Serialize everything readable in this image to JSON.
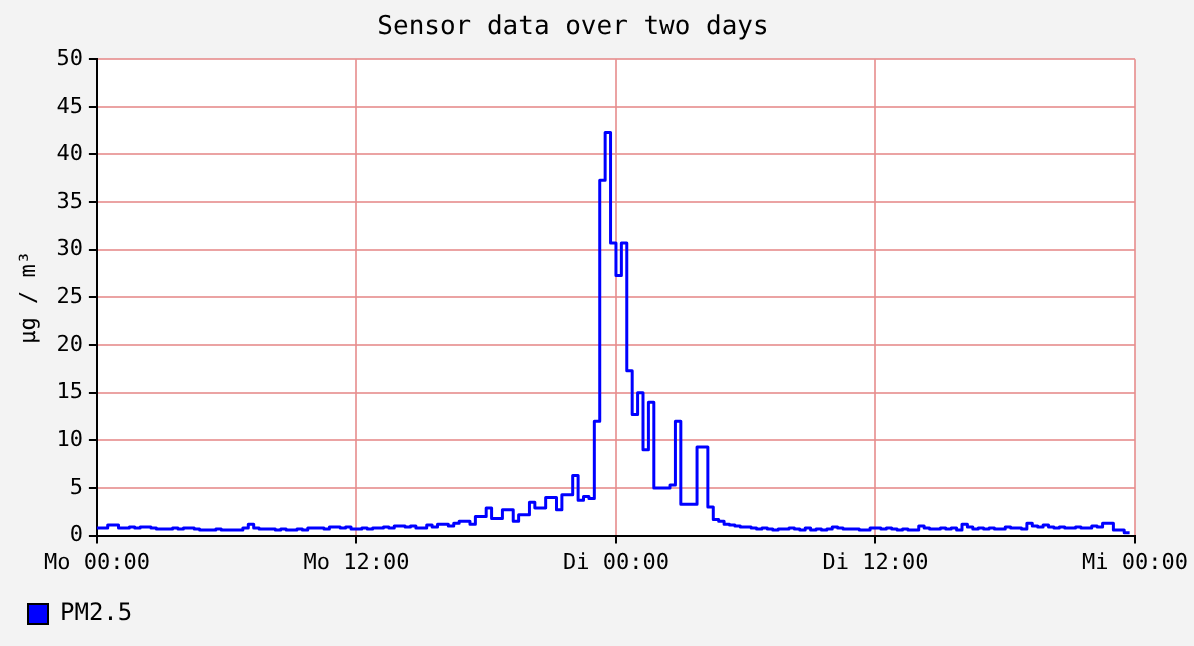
{
  "chart_data": {
    "type": "step",
    "title": "Sensor data over two days",
    "ylabel": "µg / m³",
    "categories": [
      "Mo 00:00",
      null,
      null,
      null,
      null,
      null,
      null,
      null,
      null,
      null,
      null,
      null,
      null,
      null,
      null,
      null,
      null,
      null,
      null,
      null,
      null,
      null,
      null,
      null,
      null,
      null,
      null,
      null,
      null,
      null,
      null,
      null,
      null,
      null,
      null,
      null,
      null,
      null,
      null,
      null,
      null,
      null,
      null,
      null,
      null,
      null,
      null,
      null,
      "Mo 12:00",
      null,
      null,
      null,
      null,
      null,
      null,
      null,
      null,
      null,
      null,
      null,
      null,
      null,
      null,
      null,
      null,
      null,
      null,
      null,
      null,
      null,
      null,
      null,
      null,
      null,
      null,
      null,
      null,
      null,
      null,
      null,
      null,
      null,
      null,
      null,
      null,
      null,
      null,
      null,
      null,
      null,
      null,
      null,
      null,
      null,
      null,
      null,
      "Di 00:00",
      null,
      null,
      null,
      null,
      null,
      null,
      null,
      null,
      null,
      null,
      null,
      null,
      null,
      null,
      null,
      null,
      null,
      null,
      null,
      null,
      null,
      null,
      null,
      null,
      null,
      null,
      null,
      null,
      null,
      null,
      null,
      null,
      null,
      null,
      null,
      null,
      null,
      null,
      null,
      null,
      null,
      null,
      null,
      null,
      null,
      null,
      null,
      "Di 12:00",
      null,
      null,
      null,
      null,
      null,
      null,
      null,
      null,
      null,
      null,
      null,
      null,
      null,
      null,
      null,
      null,
      null,
      null,
      null,
      null,
      null,
      null,
      null,
      null,
      null,
      null,
      null,
      null,
      null,
      null,
      null,
      null,
      null,
      null,
      null,
      null,
      null,
      null,
      null,
      null,
      null,
      null,
      null,
      null,
      null,
      null,
      null,
      "Mi 00:00"
    ],
    "ylim": [
      0,
      50
    ],
    "yticks": [
      0,
      5,
      10,
      15,
      20,
      25,
      30,
      35,
      40,
      45,
      50
    ],
    "grid": true,
    "legend": "bottom left",
    "marker": "none",
    "line_style": "solid",
    "series": [
      {
        "name": "PM2.5",
        "color": "#0000ff",
        "values": [
          0.8,
          0.8,
          1.1,
          1.1,
          0.8,
          0.8,
          0.9,
          0.8,
          0.9,
          0.9,
          0.8,
          0.7,
          0.7,
          0.7,
          0.8,
          0.7,
          0.8,
          0.8,
          0.7,
          0.6,
          0.6,
          0.6,
          0.7,
          0.6,
          0.6,
          0.6,
          0.6,
          0.8,
          1.2,
          0.8,
          0.7,
          0.7,
          0.7,
          0.6,
          0.7,
          0.6,
          0.6,
          0.7,
          0.6,
          0.8,
          0.8,
          0.8,
          0.7,
          0.9,
          0.9,
          0.8,
          0.9,
          0.7,
          0.7,
          0.8,
          0.7,
          0.8,
          0.8,
          0.9,
          0.8,
          1.0,
          1.0,
          0.9,
          1.0,
          0.8,
          0.8,
          1.1,
          0.9,
          1.2,
          1.2,
          1.0,
          1.3,
          1.5,
          1.5,
          1.2,
          2.0,
          2.0,
          2.9,
          1.8,
          1.8,
          2.7,
          2.7,
          1.5,
          2.2,
          2.2,
          3.5,
          2.9,
          2.9,
          4.0,
          4.0,
          2.7,
          4.3,
          4.3,
          6.3,
          3.7,
          4.1,
          3.9,
          12,
          37.3,
          42.3,
          30.7,
          27.3,
          30.7,
          17.3,
          12.7,
          15,
          9,
          14,
          5,
          5,
          5,
          5.3,
          12,
          3.3,
          3.3,
          3.3,
          9.3,
          9.3,
          3,
          1.7,
          1.5,
          1.2,
          1.1,
          1.0,
          0.9,
          0.9,
          0.8,
          0.7,
          0.8,
          0.7,
          0.6,
          0.7,
          0.7,
          0.8,
          0.7,
          0.6,
          0.8,
          0.6,
          0.7,
          0.6,
          0.7,
          0.9,
          0.8,
          0.7,
          0.7,
          0.7,
          0.6,
          0.6,
          0.8,
          0.8,
          0.7,
          0.8,
          0.7,
          0.6,
          0.7,
          0.6,
          0.6,
          1.0,
          0.8,
          0.7,
          0.7,
          0.8,
          0.7,
          0.8,
          0.6,
          1.2,
          0.9,
          0.7,
          0.8,
          0.7,
          0.8,
          0.7,
          0.7,
          0.9,
          0.8,
          0.8,
          0.7,
          1.3,
          1.0,
          0.9,
          1.1,
          0.9,
          0.8,
          0.9,
          0.8,
          0.8,
          0.9,
          0.8,
          0.8,
          1.0,
          0.9,
          1.3,
          1.3,
          0.6,
          0.6,
          0.3,
          0.3,
          null
        ]
      }
    ]
  }
}
